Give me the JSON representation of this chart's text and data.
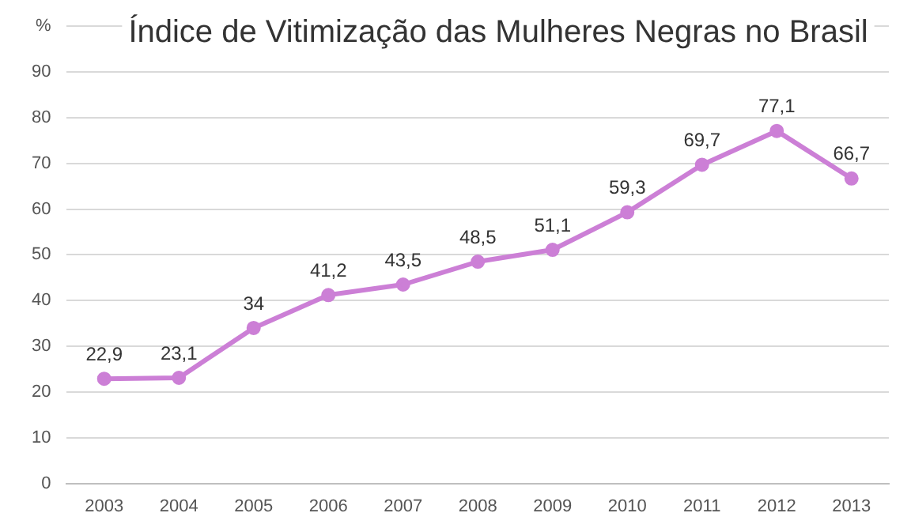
{
  "chart_data": {
    "type": "line",
    "title": "Índice de Vitimização das Mulheres Negras no Brasil",
    "categories": [
      "2003",
      "2004",
      "2005",
      "2006",
      "2007",
      "2008",
      "2009",
      "2010",
      "2011",
      "2012",
      "2013"
    ],
    "series": [
      {
        "color": "#cc7fd6",
        "values": [
          22.9,
          23.1,
          34,
          41.2,
          43.5,
          48.5,
          51.1,
          59.3,
          69.7,
          77.1,
          66.7
        ],
        "value_labels": [
          "22,9",
          "23,1",
          "34",
          "41,2",
          "43,5",
          "48,5",
          "51,1",
          "59,3",
          "69,7",
          "77,1",
          "66,7"
        ]
      }
    ],
    "ylim": [
      0,
      100
    ],
    "yticks": [
      0,
      10,
      20,
      30,
      40,
      50,
      60,
      70,
      80,
      90,
      {
        "value": 100,
        "label": "%"
      }
    ],
    "grid": "y",
    "legend": false,
    "marker": "circle",
    "line_style": "solid"
  }
}
